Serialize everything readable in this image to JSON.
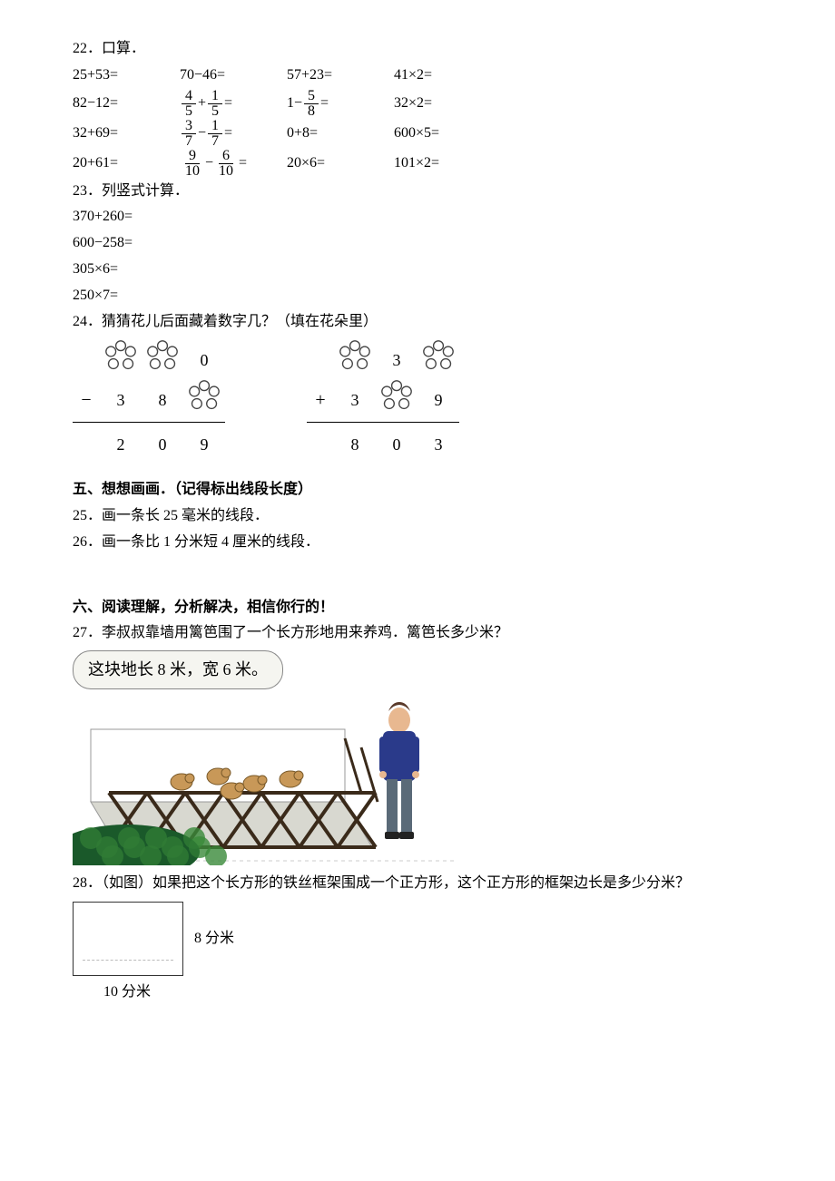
{
  "q22": {
    "title": "22．口算．",
    "rows": [
      [
        "25+53=",
        "70−46=",
        "57+23=",
        "41×2="
      ],
      [
        "82−12=",
        {
          "frac_expr": {
            "a_num": "4",
            "a_den": "5",
            "op": "+",
            "b_num": "1",
            "b_den": "5",
            "tail": "="
          }
        },
        {
          "one_minus_frac": {
            "num": "5",
            "den": "8",
            "tail": "="
          }
        },
        "32×2="
      ],
      [
        "32+69=",
        {
          "frac_expr": {
            "a_num": "3",
            "a_den": "7",
            "op": "−",
            "b_num": "1",
            "b_den": "7",
            "tail": "="
          }
        },
        "0+8=",
        "600×5="
      ],
      [
        "20+61=",
        {
          "frac_expr": {
            "a_num": "9",
            "a_den": "10",
            "op": "−",
            "b_num": "6",
            "b_den": "10",
            "tail": "="
          }
        },
        "20×6=",
        "101×2="
      ]
    ]
  },
  "q23": {
    "title": "23．列竖式计算．",
    "lines": [
      "370+260=",
      "600−258=",
      "305×6=",
      "250×7="
    ]
  },
  "q24": {
    "title": "24．猜猜花儿后面藏着数字几？（填在花朵里）",
    "left": {
      "top": [
        "",
        "f",
        "f",
        "0"
      ],
      "mid_op": "−",
      "mid": [
        "3",
        "8",
        "f"
      ],
      "res": [
        "2",
        "0",
        "9"
      ]
    },
    "right": {
      "top": [
        "",
        "f",
        "3",
        "f"
      ],
      "mid_op": "+",
      "mid": [
        "3",
        "f",
        "9"
      ],
      "res": [
        "8",
        "0",
        "3"
      ]
    }
  },
  "sec5": {
    "heading": "五、想想画画．（记得标出线段长度）",
    "q25": "25．画一条长 25 毫米的线段．",
    "q26": "26．画一条比 1 分米短 4 厘米的线段．"
  },
  "sec6": {
    "heading": "六、阅读理解，分析解决，相信你行的！",
    "q27": {
      "text": "27．李叔叔靠墙用篱笆围了一个长方形地用来养鸡．篱笆长多少米？",
      "bubble": "这块地长 8 米，宽 6 米。",
      "colors": {
        "jacket": "#2a3a8a",
        "pants": "#5a6a78",
        "skin": "#e8b890",
        "hair": "#5a3a2a",
        "fence": "#3a2a1a",
        "bush_dark": "#1a5a2a",
        "bush_light": "#3a8a3a",
        "chicken": "#c89858",
        "ground": "#d8d8d0"
      }
    },
    "q28": {
      "text": "28．（如图）如果把这个长方形的铁丝框架围成一个正方形，这个正方形的框架边长是多少分米？",
      "right_label": "8 分米",
      "bottom_label": "10 分米"
    }
  }
}
